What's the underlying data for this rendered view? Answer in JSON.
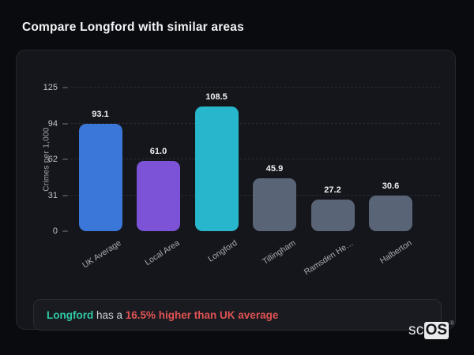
{
  "header": {
    "title": "Compare Longford with similar areas"
  },
  "chart_data": {
    "type": "bar",
    "categories": [
      "UK Average",
      "Local Area",
      "Longford",
      "Tillingham",
      "Ramsden He…",
      "Halberton"
    ],
    "values": [
      93.1,
      61.0,
      108.5,
      45.9,
      27.2,
      30.6
    ],
    "value_labels": [
      "93.1",
      "61.0",
      "108.5",
      "45.9",
      "27.2",
      "30.6"
    ],
    "bar_colors": [
      "#3b76d9",
      "#7c52d6",
      "#27b6cc",
      "#5a6477",
      "#5a6477",
      "#5a6477"
    ],
    "ylabel": "Crimes per 1,000",
    "xlabel": "",
    "ylim": [
      0,
      125
    ],
    "yticks": [
      {
        "value": 0,
        "label": "0"
      },
      {
        "value": 31.25,
        "label": "31"
      },
      {
        "value": 62.5,
        "label": "62"
      },
      {
        "value": 93.75,
        "label": "94"
      },
      {
        "value": 125,
        "label": "125"
      }
    ],
    "grid": "dashed-horizontal",
    "legend": "none",
    "title": ""
  },
  "note": {
    "area": "Longford",
    "middle": " has a ",
    "stat": "16.5% higher than UK average",
    "area_color": "#2fc9a5",
    "stat_color": "#e05252"
  },
  "logo": {
    "prefix": "sc",
    "suffix": "OS",
    "registered": "®"
  }
}
